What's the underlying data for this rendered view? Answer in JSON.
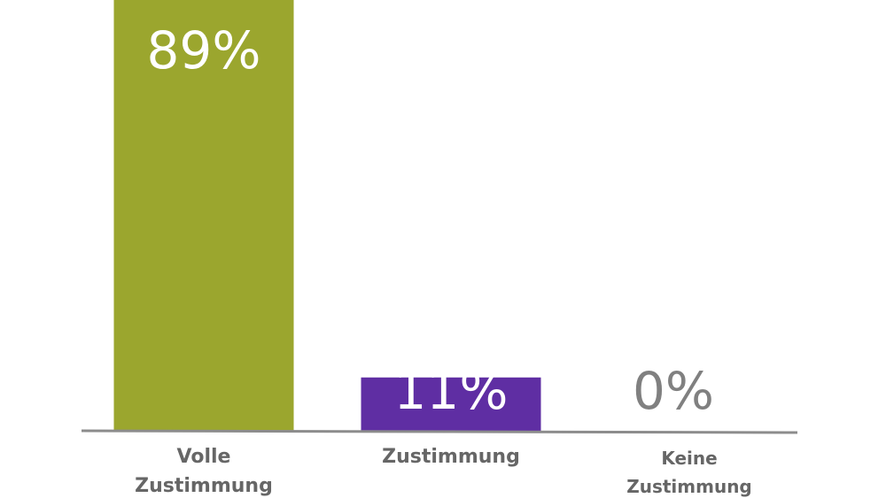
{
  "chart_data": {
    "type": "bar",
    "categories": [
      [
        "Volle",
        "Zustimmung"
      ],
      [
        "Zustimmung"
      ],
      [
        "Keine",
        "Zustimmung"
      ]
    ],
    "values": [
      89,
      11,
      0
    ],
    "value_labels": [
      "89%",
      "11%",
      "0%"
    ],
    "ylim": [
      0,
      100
    ],
    "colors": [
      "#9ba62e",
      "#5f2ea3",
      "#9e9e9e"
    ],
    "label_colors": [
      "#ffffff",
      "#ffffff",
      "#808080"
    ],
    "category_label_color": "#666666",
    "axis_color": "#8c8c8c",
    "grid": false,
    "legend": "none"
  }
}
